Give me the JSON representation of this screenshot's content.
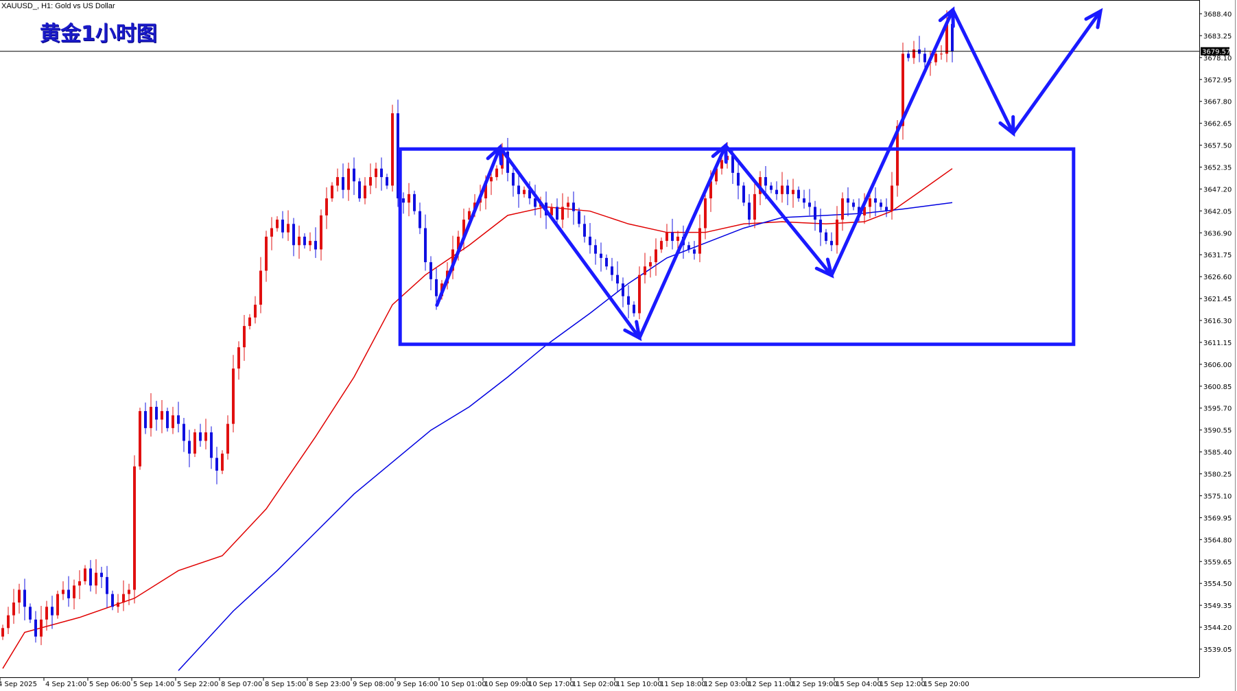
{
  "header": {
    "symbol_line": "XAUUSD_, H1:  Gold vs US Dollar",
    "overlay_title": "黄金1小时图"
  },
  "chart_data": {
    "type": "candlestick",
    "symbol": "XAUUSD_",
    "timeframe": "H1",
    "current_price": 3679.57,
    "current_price_label": "3679.57",
    "ylim": [
      3532,
      3692
    ],
    "y_ticks": [
      "3688.40",
      "3683.25",
      "3678.10",
      "3672.95",
      "3667.80",
      "3662.65",
      "3657.50",
      "3652.35",
      "3647.20",
      "3642.05",
      "3636.90",
      "3631.75",
      "3626.60",
      "3621.45",
      "3616.30",
      "3611.15",
      "3606.00",
      "3600.85",
      "3595.70",
      "3590.55",
      "3585.40",
      "3580.25",
      "3575.10",
      "3569.95",
      "3564.80",
      "3559.65",
      "3554.50",
      "3549.35",
      "3544.20",
      "3539.05"
    ],
    "x_ticks": [
      {
        "bar": 0,
        "label": "4 Sep 2025"
      },
      {
        "bar": 8,
        "label": "4 Sep 21:00"
      },
      {
        "bar": 16,
        "label": "5 Sep 06:00"
      },
      {
        "bar": 24,
        "label": "5 Sep 14:00"
      },
      {
        "bar": 32,
        "label": "5 Sep 22:00"
      },
      {
        "bar": 40,
        "label": "8 Sep 07:00"
      },
      {
        "bar": 48,
        "label": "8 Sep 15:00"
      },
      {
        "bar": 56,
        "label": "8 Sep 23:00"
      },
      {
        "bar": 64,
        "label": "9 Sep 08:00"
      },
      {
        "bar": 72,
        "label": "9 Sep 16:00"
      },
      {
        "bar": 80,
        "label": "10 Sep 01:00"
      },
      {
        "bar": 88,
        "label": "10 Sep 09:00"
      },
      {
        "bar": 96,
        "label": "10 Sep 17:00"
      },
      {
        "bar": 104,
        "label": "11 Sep 02:00"
      },
      {
        "bar": 112,
        "label": "11 Sep 10:00"
      },
      {
        "bar": 120,
        "label": "11 Sep 18:00"
      },
      {
        "bar": 128,
        "label": "12 Sep 03:00"
      },
      {
        "bar": 136,
        "label": "12 Sep 11:00"
      },
      {
        "bar": 144,
        "label": "12 Sep 19:00"
      },
      {
        "bar": 152,
        "label": "15 Sep 04:00"
      },
      {
        "bar": 160,
        "label": "15 Sep 12:00"
      },
      {
        "bar": 168,
        "label": "15 Sep 20:00"
      }
    ],
    "closes": [
      3544,
      3547,
      3550,
      3553,
      3549,
      3546,
      3542,
      3546,
      3549,
      3547,
      3552,
      3553,
      3551,
      3554,
      3555,
      3558,
      3554,
      3557,
      3556,
      3552,
      3549,
      3550,
      3552,
      3553,
      3582,
      3595,
      3591,
      3596,
      3593,
      3595,
      3591,
      3594,
      3592,
      3588,
      3585,
      3590,
      3588,
      3590,
      3584,
      3581,
      3585,
      3592,
      3605,
      3610,
      3615,
      3617,
      3620,
      3628,
      3636,
      3638,
      3640,
      3637,
      3639,
      3634,
      3636,
      3634,
      3635,
      3633,
      3641,
      3645,
      3648,
      3650,
      3647,
      3652,
      3649,
      3645,
      3648,
      3650,
      3652,
      3650,
      3648,
      3665,
      3645,
      3644,
      3646,
      3642,
      3638,
      3630,
      3626,
      3622,
      3625,
      3628,
      3633,
      3636,
      3640,
      3642,
      3644,
      3645,
      3649,
      3650,
      3652,
      3656,
      3651,
      3648,
      3646,
      3647,
      3645,
      3643,
      3644,
      3641,
      3643,
      3640,
      3643,
      3644,
      3642,
      3639,
      3636,
      3634,
      3632,
      3631,
      3629,
      3627,
      3625,
      3622,
      3620,
      3618,
      3627,
      3629,
      3630,
      3633,
      3635,
      3637,
      3635,
      3636,
      3634,
      3633,
      3632,
      3638,
      3645,
      3649,
      3652,
      3654,
      3655,
      3651,
      3648,
      3644,
      3640,
      3646,
      3650,
      3648,
      3647,
      3646,
      3648,
      3646,
      3647,
      3645,
      3644,
      3643,
      3640,
      3637,
      3635,
      3634,
      3640,
      3645,
      3644,
      3643,
      3641,
      3643,
      3645,
      3644,
      3643,
      3642,
      3648,
      3662,
      3679,
      3678,
      3680,
      3679,
      3677,
      3677,
      3679,
      3679,
      3686,
      3679.57
    ],
    "bull_color": "#e01010",
    "bear_color": "#1010e0",
    "moving_averages": [
      {
        "color": "#e00000",
        "points": [
          [
            0,
            3534.5
          ],
          [
            4,
            3543
          ],
          [
            14,
            3546.5
          ],
          [
            24,
            3551
          ],
          [
            32,
            3557.5
          ],
          [
            40,
            3561
          ],
          [
            48,
            3572
          ],
          [
            57,
            3589
          ],
          [
            64,
            3603
          ],
          [
            71,
            3620
          ],
          [
            77,
            3627
          ],
          [
            85,
            3634
          ],
          [
            92,
            3641
          ],
          [
            99,
            3643
          ],
          [
            107,
            3642
          ],
          [
            114,
            3639
          ],
          [
            121,
            3637
          ],
          [
            128,
            3637
          ],
          [
            135,
            3639
          ],
          [
            142,
            3639.5
          ],
          [
            150,
            3639
          ],
          [
            157,
            3639.5
          ],
          [
            162,
            3642
          ],
          [
            167,
            3646.5
          ],
          [
            173,
            3652
          ]
        ]
      },
      {
        "color": "#0000e0",
        "points": [
          [
            32,
            3534
          ],
          [
            42,
            3548
          ],
          [
            50,
            3557.5
          ],
          [
            57,
            3566.5
          ],
          [
            64,
            3575.5
          ],
          [
            71,
            3583
          ],
          [
            78,
            3590.5
          ],
          [
            85,
            3596
          ],
          [
            92,
            3603
          ],
          [
            99,
            3610.5
          ],
          [
            107,
            3618
          ],
          [
            114,
            3625
          ],
          [
            121,
            3631
          ],
          [
            128,
            3634.5
          ],
          [
            135,
            3638
          ],
          [
            142,
            3640.5
          ],
          [
            150,
            3641
          ],
          [
            157,
            3641.5
          ],
          [
            164,
            3642.5
          ],
          [
            173,
            3644
          ]
        ]
      }
    ],
    "annotations": {
      "color": "#1a1aff",
      "rectangle": {
        "bar_from": 72.4,
        "bar_to": 195.1,
        "price_top": 3656.6,
        "price_bottom": 3610.7
      },
      "arrow_path": [
        [
          79.1,
          3619.9
        ],
        [
          90.6,
          3657.0
        ],
        [
          116,
          3612.2
        ],
        [
          131.7,
          3657.4
        ],
        [
          151,
          3626.9
        ],
        [
          173.1,
          3689.3
        ],
        [
          184.1,
          3660.3
        ],
        [
          200,
          3689.0
        ]
      ]
    }
  }
}
